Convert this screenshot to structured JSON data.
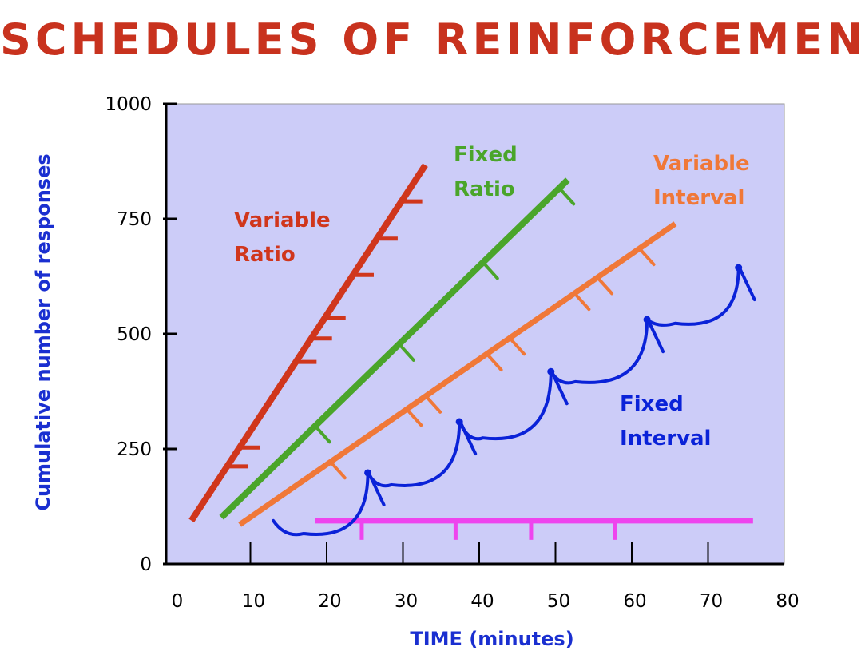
{
  "chart_data": {
    "type": "line",
    "title": "SCHEDULES OF REINFORCEMENT",
    "xlabel": "TIME (minutes)",
    "ylabel": "Cumulative number of responses",
    "xlim": [
      0,
      80
    ],
    "ylim": [
      0,
      1000
    ],
    "xticks": [
      "0",
      "10",
      "20",
      "30",
      "40",
      "50",
      "60",
      "70",
      "80"
    ],
    "yticks": [
      "0",
      "250",
      "500",
      "750",
      "1000"
    ],
    "grid": false,
    "colors": {
      "background": "#ccccf8",
      "variable_ratio": "#d0361c",
      "fixed_ratio": "#4aa52a",
      "variable_interval": "#f07838",
      "fixed_interval": "#0a22d8",
      "reinforcement_line": "#ee44ee"
    },
    "series": [
      {
        "name": "Variable Ratio",
        "label_lines": [
          "Variable",
          "Ratio"
        ],
        "key": "variable_ratio",
        "x": [
          2.5,
          32.7
        ],
        "y": [
          100,
          861
        ],
        "reinforcement_marks_y": [
          212,
          253,
          439,
          490,
          535,
          628,
          707,
          788
        ]
      },
      {
        "name": "Fixed Ratio",
        "label_lines": [
          "Fixed",
          "Ratio"
        ],
        "key": "fixed_ratio",
        "x": [
          6.5,
          51.3
        ],
        "y": [
          106,
          830
        ],
        "reinforcement_marks_x": [
          18.5,
          29.5,
          40.5,
          50.5
        ]
      },
      {
        "name": "Variable Interval",
        "label_lines": [
          "Variable",
          "Interval"
        ],
        "key": "variable_interval",
        "x": [
          8.9,
          65.4
        ],
        "y": [
          89,
          736
        ],
        "reinforcement_marks_x": [
          20.5,
          30.5,
          33,
          41,
          44,
          52.5,
          55.5,
          61
        ]
      },
      {
        "name": "Fixed Interval",
        "label_lines": [
          "Fixed",
          "Interval"
        ],
        "key": "fixed_interval",
        "x": [
          13,
          17,
          25.4,
          28.5,
          37.4,
          40.5,
          49.4,
          52.6,
          62,
          65.7,
          74
        ],
        "y": [
          94,
          66,
          198,
          172,
          309,
          274,
          418,
          396,
          531,
          523,
          644
        ]
      }
    ],
    "reinforcement_line": {
      "y": 94,
      "x": [
        18.5,
        75.9
      ],
      "marks_x": [
        24.6,
        36.9,
        46.8,
        57.8
      ]
    }
  }
}
